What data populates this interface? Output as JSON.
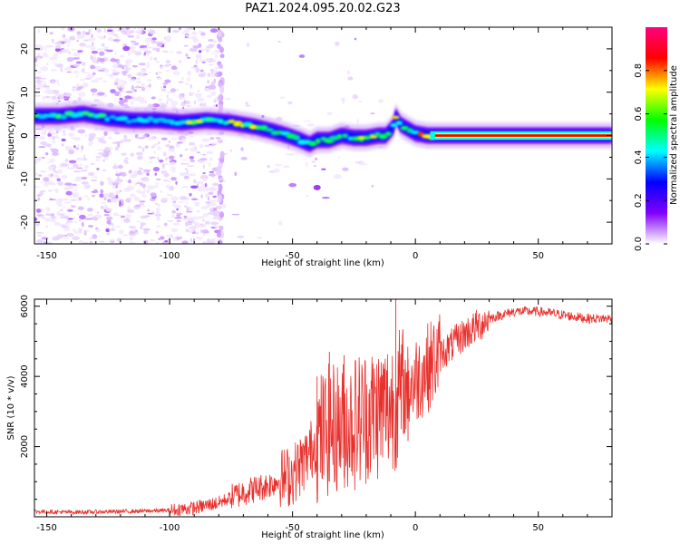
{
  "title": "PAZ1.2024.095.20.02.G23",
  "chart_data": [
    {
      "type": "heatmap",
      "xlabel": "Height of straight line (km)",
      "ylabel": "Frequency (Hz)",
      "xlim": [
        -155,
        80
      ],
      "ylim": [
        -25,
        25
      ],
      "x_ticks": [
        -150,
        -100,
        -50,
        0,
        50
      ],
      "y_ticks": [
        -20,
        -10,
        0,
        10,
        20
      ],
      "colorbar": {
        "label": "Normalized spectral amplitude",
        "range": [
          0,
          1
        ],
        "ticks": [
          0.0,
          0.2,
          0.4,
          0.6,
          0.8
        ],
        "colormap": [
          "#ffffff",
          "#8000ff",
          "#0000ff",
          "#00ffff",
          "#00ff00",
          "#ffff00",
          "#ff0000",
          "#ff0080"
        ]
      },
      "ridge": {
        "x": [
          -155,
          -145,
          -135,
          -125,
          -115,
          -105,
          -95,
          -85,
          -75,
          -65,
          -58,
          -52,
          -47,
          -43,
          -40,
          -35,
          -30,
          -25,
          -20,
          -15,
          -12,
          -9,
          -8,
          -6,
          -3,
          0,
          5,
          10,
          20,
          30,
          40,
          50,
          60,
          70,
          80
        ],
        "y": [
          4.5,
          4.5,
          5,
          4,
          3.5,
          3.5,
          3,
          3.5,
          3,
          2,
          1,
          0,
          -1,
          -2,
          -1,
          -1,
          0,
          -0.5,
          -0.5,
          0,
          0,
          2,
          4.5,
          2.5,
          1.5,
          0.5,
          0,
          0,
          0,
          0,
          0,
          0,
          0,
          0,
          0
        ]
      }
    },
    {
      "type": "line",
      "xlabel": "Height of straight line (km)",
      "ylabel": "SNR (10 * v/v)",
      "xlim": [
        -155,
        80
      ],
      "ylim": [
        0,
        6200
      ],
      "x_ticks": [
        -150,
        -100,
        -50,
        0,
        50
      ],
      "y_ticks": [
        2000,
        4000,
        6000
      ],
      "color": "#e8302c",
      "series": [
        {
          "x": [
            -155,
            -140,
            -120,
            -100,
            -90,
            -80,
            -70,
            -60,
            -50,
            -45,
            -40,
            -35,
            -30,
            -25,
            -20,
            -15,
            -10,
            -5,
            0,
            10,
            20,
            30,
            40,
            50,
            60,
            70,
            80
          ],
          "y": [
            150,
            130,
            150,
            180,
            250,
            400,
            700,
            900,
            1200,
            1600,
            2200,
            2500,
            2600,
            2700,
            2900,
            3000,
            3200,
            3500,
            3900,
            4600,
            5200,
            5650,
            5850,
            5850,
            5750,
            5650,
            5650
          ]
        }
      ],
      "spikes": [
        {
          "x": -8,
          "y": 6200
        },
        {
          "x": -35,
          "y": 4700
        },
        {
          "x": -29,
          "y": 4600
        },
        {
          "x": -40,
          "y": 4000
        },
        {
          "x": -3,
          "y": 4500
        }
      ]
    }
  ]
}
